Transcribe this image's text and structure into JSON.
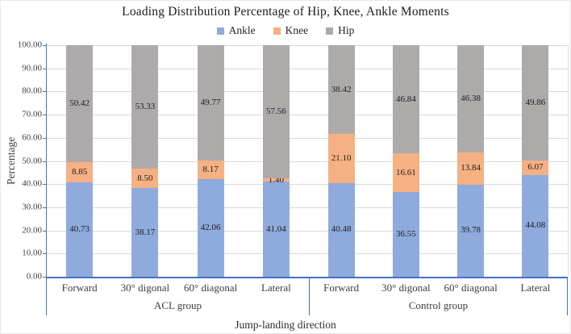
{
  "chart_data": {
    "type": "bar",
    "stacked": true,
    "title": "Loading Distribution Percentage of Hip, Knee, Ankle Moments",
    "xlabel": "Jump-landing direction",
    "ylabel": "Percentage",
    "ylim": [
      0,
      100
    ],
    "ytick_labels": [
      "0.00",
      "10.00",
      "20.00",
      "30.00",
      "40.00",
      "50.00",
      "60.00",
      "70.00",
      "80.00",
      "90.00",
      "100.00"
    ],
    "gridlines": true,
    "legend_position": "top",
    "value_label_format": "0.00",
    "groups": [
      {
        "label": "ACL group",
        "categories": [
          "Forward",
          "30° digonal",
          "60° diagonal",
          "Lateral"
        ]
      },
      {
        "label": "Control group",
        "categories": [
          "Forward",
          "30° digonal",
          "60° diagonal",
          "Lateral"
        ]
      }
    ],
    "categories": [
      "Forward",
      "30° digonal",
      "60° diagonal",
      "Lateral",
      "Forward",
      "30° digonal",
      "60° diagonal",
      "Lateral"
    ],
    "series": [
      {
        "name": "Ankle",
        "color": "#8FAADC",
        "values": [
          40.73,
          38.17,
          42.06,
          41.04,
          40.48,
          36.55,
          39.78,
          44.08
        ]
      },
      {
        "name": "Knee",
        "color": "#F5B183",
        "values": [
          8.85,
          8.5,
          8.17,
          1.4,
          21.1,
          16.61,
          13.84,
          6.07
        ]
      },
      {
        "name": "Hip",
        "color": "#AEAAAA",
        "values": [
          50.42,
          53.33,
          49.77,
          57.56,
          38.42,
          46.84,
          46.38,
          49.86
        ]
      }
    ],
    "colors": {
      "axis_line": "#4472C4",
      "gridline": "#D9D9D9",
      "tick_text": "#404040",
      "data_label_text": "#1F1F1F"
    }
  }
}
